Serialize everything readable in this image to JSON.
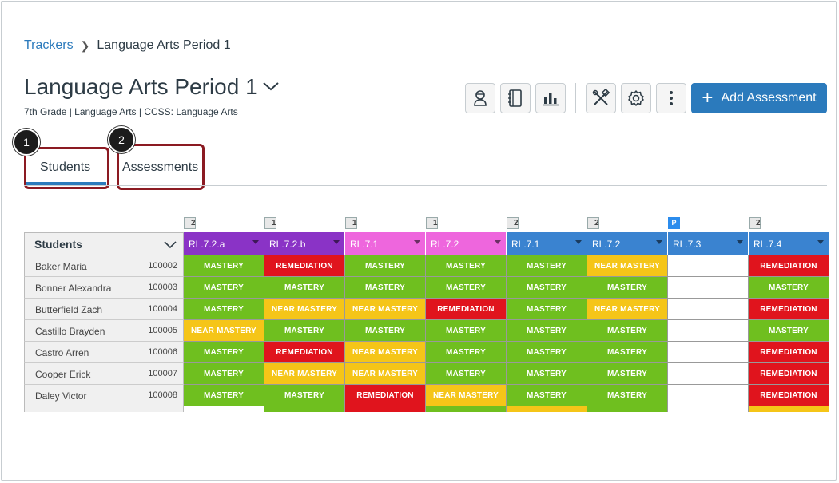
{
  "breadcrumb": {
    "link": "Trackers",
    "current": "Language Arts Period 1"
  },
  "page": {
    "title": "Language Arts Period 1",
    "subtitle": "7th Grade  |  Language Arts  |  CCSS: Language Arts"
  },
  "toolbar": {
    "icons": [
      "student-icon",
      "notebook-icon",
      "bar-chart-icon",
      "tools-icon",
      "gear-icon",
      "more-vertical-icon"
    ],
    "add_label": "Add Assessment"
  },
  "tabs": [
    {
      "label": "Students",
      "badge": "1",
      "active": true
    },
    {
      "label": "Assessments",
      "badge": "2",
      "active": false
    }
  ],
  "colors": {
    "mastery": "#6fbf1f",
    "near": "#f5c518",
    "remediation": "#e0141d",
    "accent": "#2b7abc",
    "highlight": "#8b1a22"
  },
  "grid": {
    "students_header": "Students",
    "standards": [
      {
        "code": "RL.7.2.a",
        "count": "2",
        "type": "box",
        "color": "#8a33c6"
      },
      {
        "code": "RL.7.2.b",
        "count": "1",
        "type": "box",
        "color": "#8a33c6"
      },
      {
        "code": "RL.7.1",
        "count": "1",
        "type": "box",
        "color": "#ee66dd"
      },
      {
        "code": "RL.7.2",
        "count": "1",
        "type": "box",
        "color": "#ee66dd"
      },
      {
        "code": "RL.7.1",
        "count": "2",
        "type": "box",
        "color": "#3a83d0"
      },
      {
        "code": "RL.7.2",
        "count": "2",
        "type": "box",
        "color": "#3a83d0"
      },
      {
        "code": "RL.7.3",
        "count": "P",
        "type": "p",
        "color": "#3a83d0"
      },
      {
        "code": "RL.7.4",
        "count": "2",
        "type": "box",
        "color": "#3a83d0"
      }
    ],
    "students": [
      {
        "name": "Baker Maria",
        "id": "100002",
        "scores": [
          "MASTERY",
          "REMEDIATION",
          "MASTERY",
          "MASTERY",
          "MASTERY",
          "NEAR MASTERY",
          "",
          "REMEDIATION"
        ]
      },
      {
        "name": "Bonner Alexandra",
        "id": "100003",
        "scores": [
          "MASTERY",
          "MASTERY",
          "MASTERY",
          "MASTERY",
          "MASTERY",
          "MASTERY",
          "",
          "MASTERY"
        ]
      },
      {
        "name": "Butterfield Zach",
        "id": "100004",
        "scores": [
          "MASTERY",
          "NEAR MASTERY",
          "NEAR MASTERY",
          "REMEDIATION",
          "MASTERY",
          "NEAR MASTERY",
          "",
          "REMEDIATION"
        ]
      },
      {
        "name": "Castillo Brayden",
        "id": "100005",
        "scores": [
          "NEAR MASTERY",
          "MASTERY",
          "MASTERY",
          "MASTERY",
          "MASTERY",
          "MASTERY",
          "",
          "MASTERY"
        ]
      },
      {
        "name": "Castro Arren",
        "id": "100006",
        "scores": [
          "MASTERY",
          "REMEDIATION",
          "NEAR MASTERY",
          "MASTERY",
          "MASTERY",
          "MASTERY",
          "",
          "REMEDIATION"
        ]
      },
      {
        "name": "Cooper Erick",
        "id": "100007",
        "scores": [
          "MASTERY",
          "NEAR MASTERY",
          "NEAR MASTERY",
          "MASTERY",
          "MASTERY",
          "MASTERY",
          "",
          "REMEDIATION"
        ]
      },
      {
        "name": "Daley Victor",
        "id": "100008",
        "scores": [
          "MASTERY",
          "MASTERY",
          "REMEDIATION",
          "NEAR MASTERY",
          "MASTERY",
          "MASTERY",
          "",
          "REMEDIATION"
        ]
      }
    ]
  }
}
